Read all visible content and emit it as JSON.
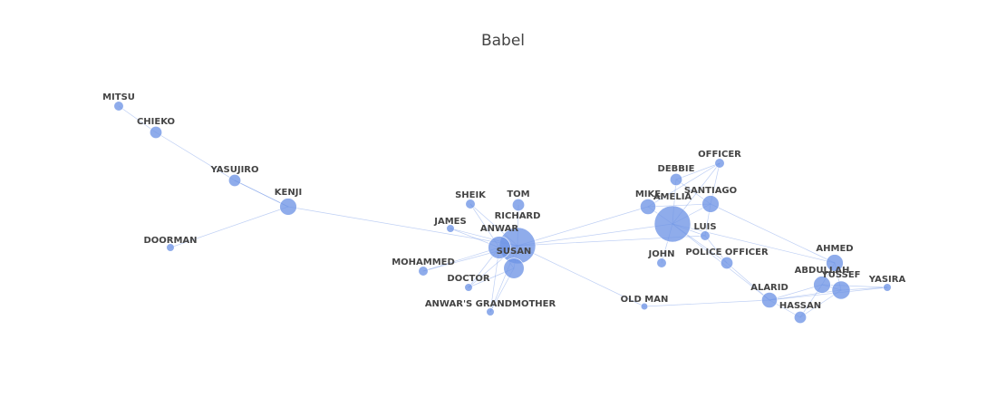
{
  "title": "Babel",
  "colors": {
    "node": "#6f95e6",
    "edge": "#6f95e6",
    "label": "#444444",
    "background": "#ffffff"
  },
  "nodes": [
    {
      "id": "MITSU",
      "weight": 1
    },
    {
      "id": "CHIEKO",
      "weight": 2
    },
    {
      "id": "YASUJIRO",
      "weight": 2
    },
    {
      "id": "KENJI",
      "weight": 5
    },
    {
      "id": "DOORMAN",
      "weight": 0.5
    },
    {
      "id": "SHEIK",
      "weight": 1
    },
    {
      "id": "TOM",
      "weight": 2
    },
    {
      "id": "RICHARD",
      "weight": 30
    },
    {
      "id": "JAMES",
      "weight": 0.5
    },
    {
      "id": "ANWAR",
      "weight": 10
    },
    {
      "id": "SUSAN",
      "weight": 8
    },
    {
      "id": "MOHAMMED",
      "weight": 1
    },
    {
      "id": "DOCTOR",
      "weight": 0.5
    },
    {
      "id": "ANWAR'S GRANDMOTHER",
      "weight": 0.5
    },
    {
      "id": "OLD MAN",
      "weight": 0.3
    },
    {
      "id": "OFFICER",
      "weight": 1
    },
    {
      "id": "DEBBIE",
      "weight": 2
    },
    {
      "id": "MIKE",
      "weight": 4
    },
    {
      "id": "AMELIA",
      "weight": 30
    },
    {
      "id": "SANTIAGO",
      "weight": 5
    },
    {
      "id": "LUIS",
      "weight": 1
    },
    {
      "id": "JOHN",
      "weight": 1
    },
    {
      "id": "POLICE OFFICER",
      "weight": 2
    },
    {
      "id": "AHMED",
      "weight": 5
    },
    {
      "id": "ABDULLAH",
      "weight": 5
    },
    {
      "id": "YUSSEF",
      "weight": 6
    },
    {
      "id": "YASIRA",
      "weight": 0.5
    },
    {
      "id": "ALARID",
      "weight": 4
    },
    {
      "id": "HASSAN",
      "weight": 2
    }
  ],
  "edges": [
    [
      "MITSU",
      "CHIEKO"
    ],
    [
      "CHIEKO",
      "YASUJIRO"
    ],
    [
      "YASUJIRO",
      "KENJI"
    ],
    [
      "YASUJIRO",
      "KENJI"
    ],
    [
      "KENJI",
      "DOORMAN"
    ],
    [
      "KENJI",
      "RICHARD"
    ],
    [
      "RICHARD",
      "ANWAR"
    ],
    [
      "RICHARD",
      "SUSAN"
    ],
    [
      "RICHARD",
      "TOM"
    ],
    [
      "RICHARD",
      "SHEIK"
    ],
    [
      "RICHARD",
      "JAMES"
    ],
    [
      "RICHARD",
      "MOHAMMED"
    ],
    [
      "RICHARD",
      "DOCTOR"
    ],
    [
      "RICHARD",
      "ANWAR'S GRANDMOTHER"
    ],
    [
      "ANWAR",
      "SUSAN"
    ],
    [
      "ANWAR",
      "SHEIK"
    ],
    [
      "ANWAR",
      "JAMES"
    ],
    [
      "ANWAR",
      "MOHAMMED"
    ],
    [
      "ANWAR",
      "DOCTOR"
    ],
    [
      "SUSAN",
      "DOCTOR"
    ],
    [
      "SUSAN",
      "ANWAR'S GRANDMOTHER"
    ],
    [
      "ANWAR",
      "ANWAR'S GRANDMOTHER"
    ],
    [
      "RICHARD",
      "AMELIA"
    ],
    [
      "RICHARD",
      "MIKE"
    ],
    [
      "RICHARD",
      "LUIS"
    ],
    [
      "RICHARD",
      "OLD MAN"
    ],
    [
      "OLD MAN",
      "ALARID"
    ],
    [
      "AMELIA",
      "MIKE"
    ],
    [
      "AMELIA",
      "DEBBIE"
    ],
    [
      "AMELIA",
      "OFFICER"
    ],
    [
      "AMELIA",
      "SANTIAGO"
    ],
    [
      "AMELIA",
      "LUIS"
    ],
    [
      "AMELIA",
      "JOHN"
    ],
    [
      "AMELIA",
      "POLICE OFFICER"
    ],
    [
      "AMELIA",
      "ALARID"
    ],
    [
      "MIKE",
      "SANTIAGO"
    ],
    [
      "DEBBIE",
      "OFFICER"
    ],
    [
      "DEBBIE",
      "SANTIAGO"
    ],
    [
      "OFFICER",
      "SANTIAGO"
    ],
    [
      "MIKE",
      "OFFICER"
    ],
    [
      "SANTIAGO",
      "LUIS"
    ],
    [
      "SANTIAGO",
      "AHMED"
    ],
    [
      "LUIS",
      "POLICE OFFICER"
    ],
    [
      "POLICE OFFICER",
      "ALARID"
    ],
    [
      "AMELIA",
      "AHMED"
    ],
    [
      "AHMED",
      "ABDULLAH"
    ],
    [
      "AHMED",
      "YUSSEF"
    ],
    [
      "ABDULLAH",
      "YUSSEF"
    ],
    [
      "ABDULLAH",
      "YASIRA"
    ],
    [
      "YUSSEF",
      "YASIRA"
    ],
    [
      "ABDULLAH",
      "ALARID"
    ],
    [
      "YUSSEF",
      "ALARID"
    ],
    [
      "ABDULLAH",
      "HASSAN"
    ],
    [
      "YUSSEF",
      "HASSAN"
    ],
    [
      "ALARID",
      "HASSAN"
    ],
    [
      "ALARID",
      "YASIRA"
    ]
  ]
}
